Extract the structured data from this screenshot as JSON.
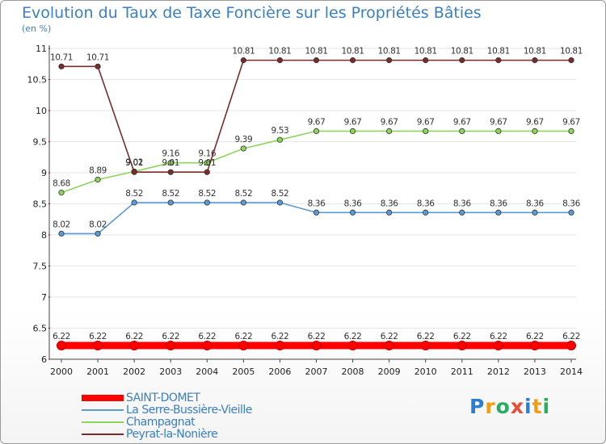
{
  "header": {
    "title": "Evolution du Taux de Taxe Foncière sur les Propriétés Bâties",
    "subtitle": "(en %)"
  },
  "logo": {
    "letters": [
      "P",
      "r",
      "o",
      "x",
      "i",
      "t",
      "i"
    ],
    "colors": [
      "#2a7fd1",
      "#f39c12",
      "#27ae60",
      "#e74c3c",
      "#2a7fd1",
      "#f39c12",
      "#27ae60"
    ]
  },
  "chart_data": {
    "type": "line",
    "title": "Evolution du Taux de Taxe Foncière sur les Propriétés Bâties",
    "ylabel": "(en %)",
    "xlabel": "",
    "categories": [
      "2000",
      "2001",
      "2002",
      "2003",
      "2004",
      "2005",
      "2006",
      "2007",
      "2008",
      "2009",
      "2010",
      "2011",
      "2012",
      "2013",
      "2014"
    ],
    "ylim": [
      6,
      11
    ],
    "yticks": [
      "6",
      "6.5",
      "7",
      "7.5",
      "8",
      "8.5",
      "9",
      "9.5",
      "10",
      "10.5",
      "11"
    ],
    "legend_position": "bottom-left",
    "series": [
      {
        "name": "SAINT-DOMET",
        "color": "#ff0000",
        "values": [
          6.22,
          6.22,
          6.22,
          6.22,
          6.22,
          6.22,
          6.22,
          6.22,
          6.22,
          6.22,
          6.22,
          6.22,
          6.22,
          6.22,
          6.22
        ],
        "labels": [
          "6.22",
          "6.22",
          "6.22",
          "6.22",
          "6.22",
          "6.22",
          "6.22",
          "6.22",
          "6.22",
          "6.22",
          "6.22",
          "6.22",
          "6.22",
          "6.22",
          "6.22"
        ]
      },
      {
        "name": "La Serre-Bussière-Vieille",
        "color": "#5b9bd5",
        "values": [
          8.02,
          8.02,
          8.52,
          8.52,
          8.52,
          8.52,
          8.52,
          8.36,
          8.36,
          8.36,
          8.36,
          8.36,
          8.36,
          8.36,
          8.36
        ],
        "labels": [
          "8.02",
          "8.02",
          "8.52",
          "8.52",
          "8.52",
          "8.52",
          "8.52",
          "8.36",
          "8.36",
          "8.36",
          "8.36",
          "8.36",
          "8.36",
          "8.36",
          "8.36"
        ]
      },
      {
        "name": "Champagnat",
        "color": "#8ed65b",
        "values": [
          8.68,
          8.89,
          9.02,
          9.16,
          9.16,
          9.39,
          9.53,
          9.67,
          9.67,
          9.67,
          9.67,
          9.67,
          9.67,
          9.67,
          9.67
        ],
        "labels": [
          "8.68",
          "8.89",
          "9.02",
          "9.16",
          "9.16",
          "9.39",
          "9.53",
          "9.67",
          "9.67",
          "9.67",
          "9.67",
          "9.67",
          "9.67",
          "9.67",
          "9.67"
        ]
      },
      {
        "name": "Peyrat-la-Nonière",
        "color": "#7b2b2b",
        "values": [
          10.71,
          10.71,
          9.01,
          9.01,
          9.01,
          10.81,
          10.81,
          10.81,
          10.81,
          10.81,
          10.81,
          10.81,
          10.81,
          10.81,
          10.81
        ],
        "labels": [
          "10.71",
          "10.71",
          "9.01",
          "9.01",
          "9.01",
          "10.81",
          "10.81",
          "10.81",
          "10.81",
          "10.81",
          "10.81",
          "10.81",
          "10.81",
          "10.81",
          "10.81"
        ]
      }
    ]
  }
}
